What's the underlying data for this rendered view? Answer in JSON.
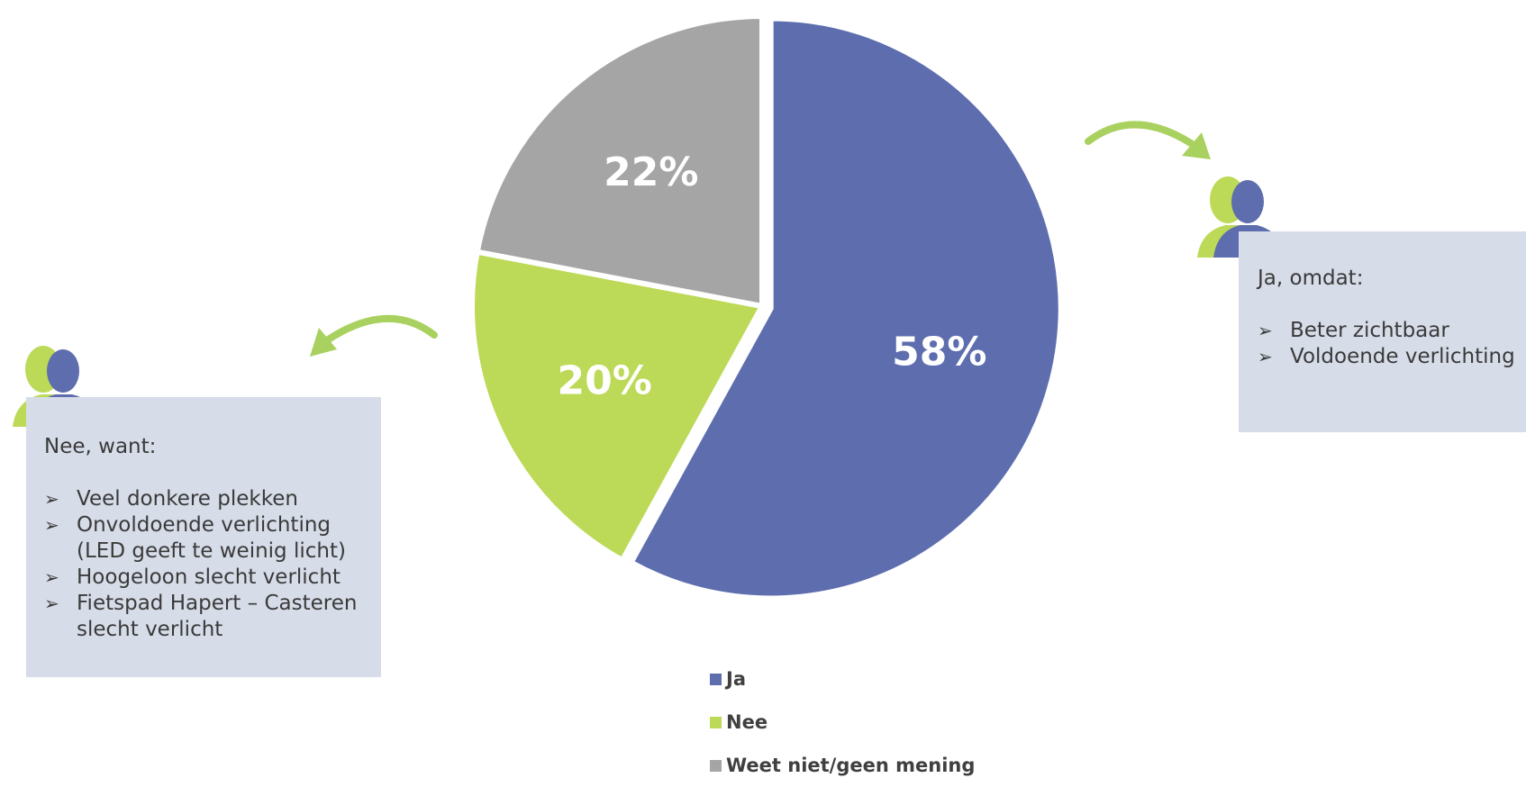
{
  "chart_data": {
    "type": "pie",
    "title": "",
    "categories": [
      "Ja",
      "Nee",
      "Weet niet/geen mening"
    ],
    "values": [
      58,
      20,
      22
    ],
    "labels": [
      "58%",
      "20%",
      "22%"
    ],
    "colors": [
      "#5d6dae",
      "#bcd957",
      "#a5a5a5"
    ],
    "legend_position": "bottom",
    "start_angle_deg": 0,
    "direction": "clockwise",
    "exploded_slice": "Ja"
  },
  "nee_box": {
    "heading": "Nee, want:",
    "items": [
      "Veel donkere plekken",
      "Onvoldoende verlichting (LED geeft te weinig licht)",
      "Hoogeloon slecht verlicht",
      "Fietspad Hapert – Casteren slecht verlicht"
    ]
  },
  "ja_box": {
    "heading": "Ja, omdat:",
    "items": [
      "Beter zichtbaar",
      "Voldoende verlichting"
    ]
  },
  "icons": {
    "person": "person-icon",
    "arrow": "curved-arrow-icon",
    "person_front_color": "#5d6dae",
    "person_back_color": "#bcd957",
    "arrow_color": "#a9d160"
  }
}
